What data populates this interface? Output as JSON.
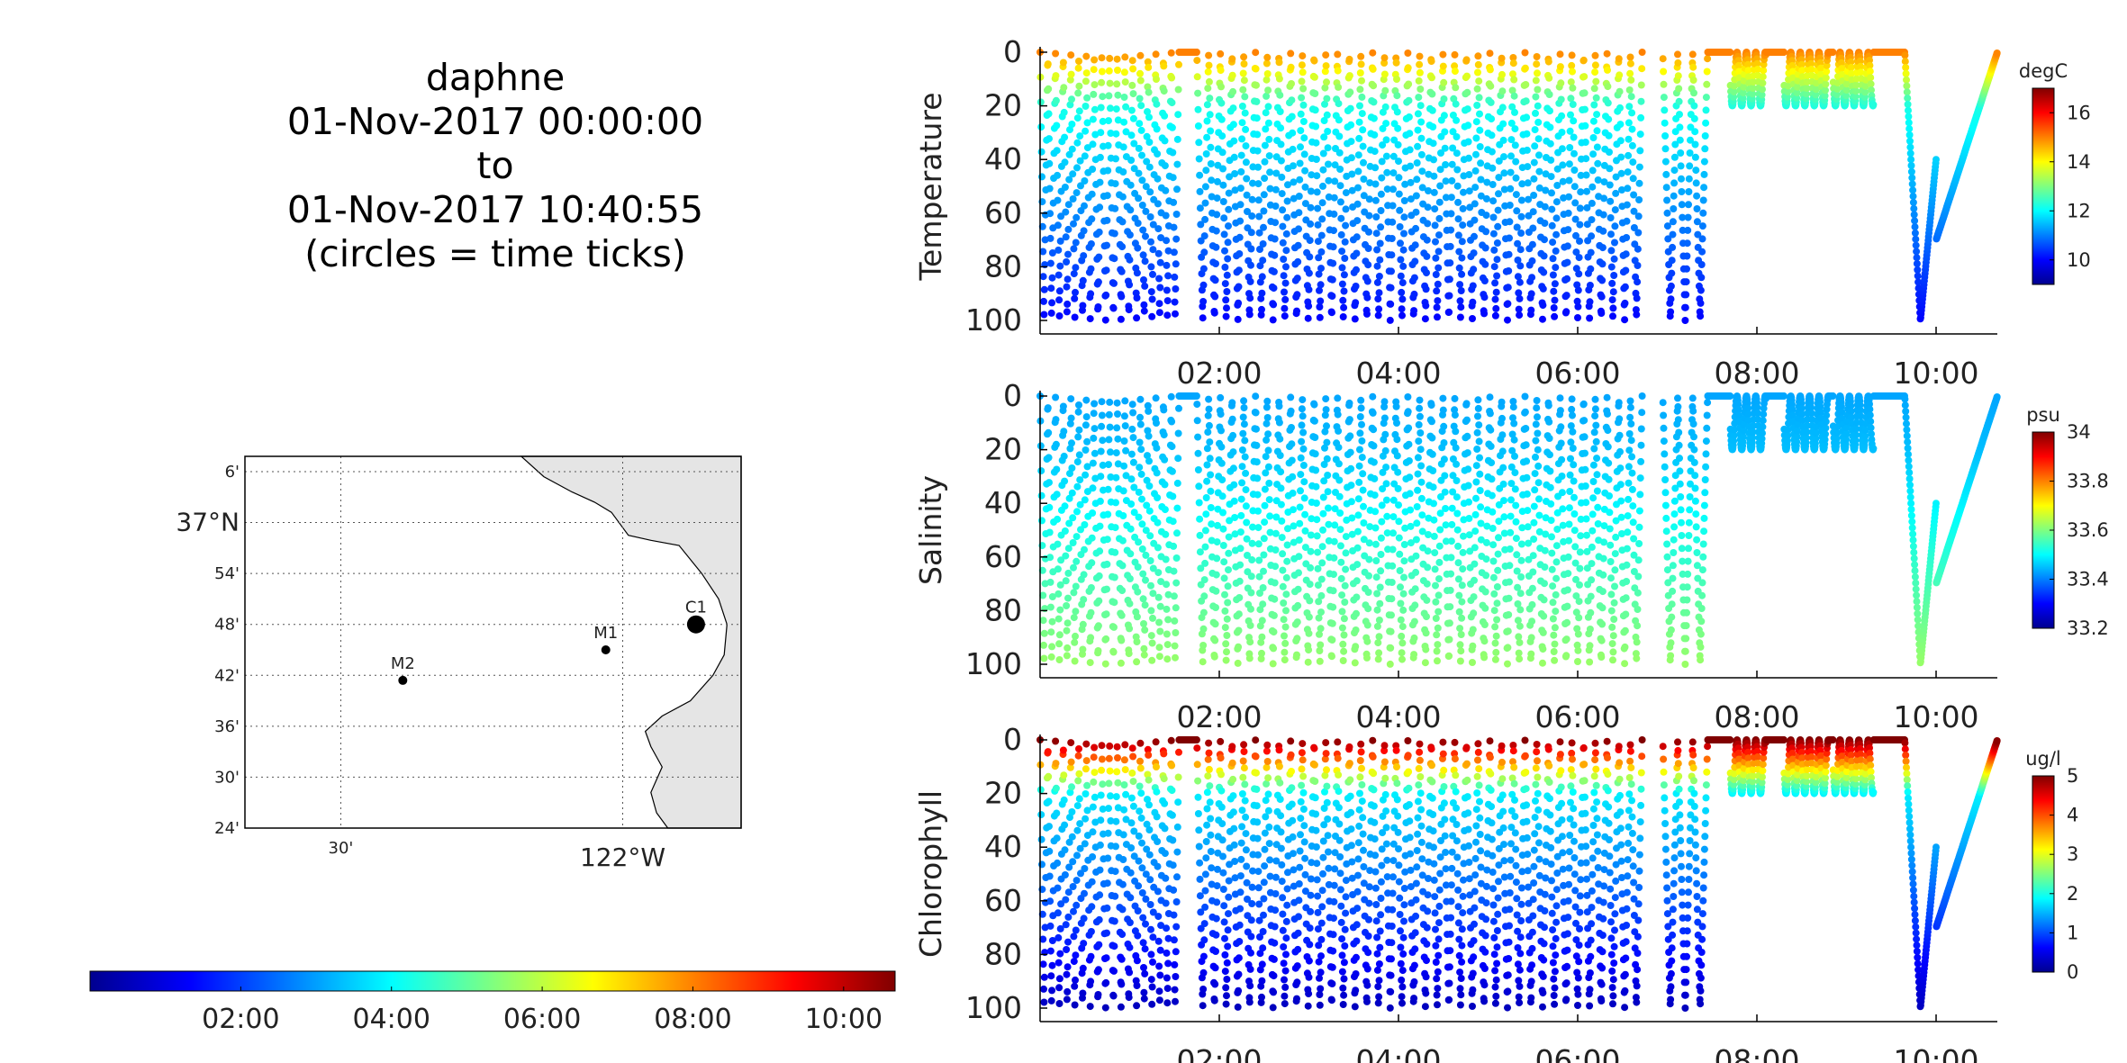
{
  "title": {
    "lines": [
      "daphne",
      "01-Nov-2017 00:00:00",
      "to",
      "01-Nov-2017 10:40:55",
      "(circles = time ticks)"
    ]
  },
  "map": {
    "lat_ticks": [
      "6'",
      "37°N",
      "54'",
      "48'",
      "42'",
      "36'",
      "30'",
      "24'"
    ],
    "lon_ticks": [
      "30'",
      "122°W"
    ],
    "stations": [
      {
        "name": "M2",
        "lon": -122.39,
        "lat": 36.69
      },
      {
        "name": "M1",
        "lon": -122.03,
        "lat": 36.75
      },
      {
        "name": "C1",
        "lon": -121.87,
        "lat": 36.8
      }
    ],
    "land_color": "#e5e5e5"
  },
  "time_colorbar": {
    "tick_labels": [
      "02:00",
      "04:00",
      "06:00",
      "08:00",
      "10:00"
    ],
    "colormap": "jet"
  },
  "chart_data": [
    {
      "type": "scatter",
      "ylabel": "Temperature",
      "unit": "degC",
      "x_tick_labels": [
        "02:00",
        "04:00",
        "06:00",
        "08:00",
        "10:00"
      ],
      "y_tick_labels": [
        "0",
        "20",
        "40",
        "60",
        "80",
        "100"
      ],
      "xlim": [
        "00:00",
        "10:41"
      ],
      "ylim": [
        100,
        0
      ],
      "clim": [
        9,
        17
      ],
      "colorbar_ticks": [
        "10",
        "12",
        "14",
        "16"
      ],
      "surface_value": 15.0,
      "deep_value": 10.0,
      "value_at_20m": 12.2
    },
    {
      "type": "scatter",
      "ylabel": "Salinity",
      "unit": "psu",
      "x_tick_labels": [
        "02:00",
        "04:00",
        "06:00",
        "08:00",
        "10:00"
      ],
      "y_tick_labels": [
        "0",
        "20",
        "40",
        "60",
        "80",
        "100"
      ],
      "xlim": [
        "00:00",
        "10:41"
      ],
      "ylim": [
        100,
        0
      ],
      "clim": [
        33.2,
        34.0
      ],
      "colorbar_ticks": [
        "33.2",
        "33.4",
        "33.6",
        "33.8",
        "34"
      ],
      "surface_value": 33.43,
      "deep_value": 33.62,
      "value_at_20m": 33.45
    },
    {
      "type": "scatter",
      "ylabel": "Chlorophyll",
      "unit": "ug/l",
      "x_tick_labels": [
        "02:00",
        "04:00",
        "06:00",
        "08:00",
        "10:00"
      ],
      "y_tick_labels": [
        "0",
        "20",
        "40",
        "60",
        "80",
        "100"
      ],
      "xlim": [
        "00:00",
        "10:41"
      ],
      "ylim": [
        100,
        0
      ],
      "clim": [
        0,
        5
      ],
      "colorbar_ticks": [
        "0",
        "1",
        "2",
        "3",
        "4",
        "5"
      ],
      "surface_value": 5.0,
      "deep_value": 0.3,
      "value_at_20m": 1.8
    }
  ]
}
